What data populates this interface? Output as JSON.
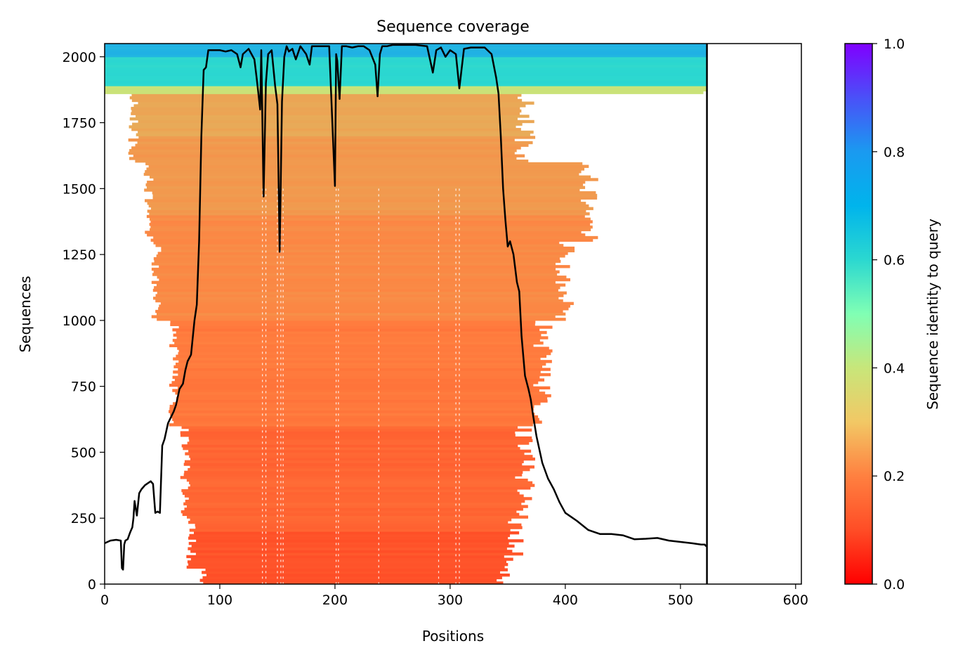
{
  "chart_data": {
    "type": "heatmap",
    "title": "Sequence coverage",
    "xlabel": "Positions",
    "ylabel": "Sequences",
    "xlim": [
      0,
      605
    ],
    "ylim": [
      0,
      2050
    ],
    "xticks": [
      0,
      100,
      200,
      300,
      400,
      500,
      600
    ],
    "yticks": [
      0,
      250,
      500,
      750,
      1000,
      1250,
      1500,
      1750,
      2000
    ],
    "query_length": 523,
    "colorbar": {
      "label": "Sequence identity to query",
      "range": [
        0.0,
        1.0
      ],
      "ticks": [
        "0.0",
        "0.2",
        "0.4",
        "0.6",
        "0.8",
        "1.0"
      ],
      "colormap": "rainbow_r",
      "colors": [
        "#ff0000",
        "#ff8040",
        "#c8e67a",
        "#2bd8d0",
        "#1a9af0",
        "#8000ff"
      ]
    },
    "identity_bands": [
      {
        "from": 0,
        "to": 200,
        "identity": 0.13
      },
      {
        "from": 200,
        "to": 600,
        "identity": 0.16
      },
      {
        "from": 600,
        "to": 1000,
        "identity": 0.19
      },
      {
        "from": 1000,
        "to": 1400,
        "identity": 0.22
      },
      {
        "from": 1400,
        "to": 1700,
        "identity": 0.25
      },
      {
        "from": 1700,
        "to": 1860,
        "identity": 0.28
      },
      {
        "from": 1860,
        "to": 1890,
        "identity": 0.4
      },
      {
        "from": 1890,
        "to": 2000,
        "identity": 0.6
      },
      {
        "from": 2000,
        "to": 2050,
        "identity": 0.72
      }
    ],
    "coverage_extent": [
      {
        "from": 0,
        "to": 60,
        "x_start": 85,
        "x_end": 345
      },
      {
        "from": 60,
        "to": 250,
        "x_start": 75,
        "x_end": 355
      },
      {
        "from": 250,
        "to": 600,
        "x_start": 70,
        "x_end": 365
      },
      {
        "from": 600,
        "to": 1000,
        "x_start": 60,
        "x_end": 380
      },
      {
        "from": 1000,
        "to": 1300,
        "x_start": 45,
        "x_end": 400
      },
      {
        "from": 1300,
        "to": 1600,
        "x_start": 38,
        "x_end": 420
      },
      {
        "from": 1600,
        "to": 1860,
        "x_start": 25,
        "x_end": 365
      },
      {
        "from": 1860,
        "to": 2050,
        "x_start": 0,
        "x_end": 523
      }
    ],
    "coverage_line": {
      "x": [
        0,
        5,
        10,
        14,
        15,
        16,
        17,
        18,
        20,
        22,
        24,
        25,
        26,
        28,
        30,
        32,
        35,
        40,
        42,
        44,
        46,
        48,
        50,
        52,
        55,
        60,
        62,
        65,
        68,
        70,
        72,
        75,
        78,
        80,
        82,
        84,
        86,
        88,
        90,
        95,
        100,
        105,
        110,
        115,
        118,
        120,
        125,
        130,
        132,
        135,
        136,
        138,
        140,
        142,
        145,
        148,
        150,
        152,
        154,
        156,
        158,
        160,
        163,
        166,
        170,
        175,
        178,
        180,
        185,
        190,
        195,
        200,
        201,
        202,
        204,
        206,
        210,
        215,
        220,
        225,
        230,
        235,
        237,
        239,
        241,
        245,
        250,
        260,
        270,
        280,
        285,
        288,
        292,
        296,
        300,
        305,
        308,
        312,
        318,
        322,
        330,
        336,
        340,
        342,
        344,
        346,
        348,
        350,
        352,
        355,
        358,
        360,
        362,
        365,
        368,
        370,
        372,
        375,
        380,
        385,
        390,
        395,
        400,
        405,
        410,
        420,
        430,
        440,
        450,
        460,
        470,
        480,
        490,
        500,
        510,
        518,
        521,
        522,
        523
      ],
      "y": [
        155,
        165,
        168,
        165,
        60,
        55,
        150,
        165,
        170,
        195,
        215,
        250,
        315,
        260,
        345,
        360,
        375,
        390,
        380,
        270,
        275,
        270,
        525,
        550,
        610,
        655,
        680,
        740,
        760,
        810,
        845,
        870,
        1000,
        1060,
        1300,
        1700,
        1950,
        1960,
        2025,
        2025,
        2025,
        2020,
        2025,
        2010,
        1960,
        2010,
        2030,
        1990,
        1920,
        1800,
        2025,
        1470,
        1900,
        2010,
        2025,
        1890,
        1820,
        1260,
        1830,
        2000,
        2040,
        2020,
        2030,
        1990,
        2040,
        2010,
        1970,
        2040,
        2040,
        2040,
        2040,
        1510,
        2010,
        1985,
        1840,
        2040,
        2040,
        2035,
        2040,
        2040,
        2025,
        1970,
        1850,
        2010,
        2040,
        2040,
        2045,
        2045,
        2045,
        2040,
        1940,
        2025,
        2035,
        2000,
        2025,
        2010,
        1880,
        2030,
        2035,
        2035,
        2035,
        2010,
        1920,
        1860,
        1700,
        1500,
        1380,
        1280,
        1300,
        1250,
        1145,
        1110,
        940,
        790,
        740,
        700,
        640,
        560,
        460,
        400,
        360,
        310,
        270,
        255,
        240,
        205,
        190,
        190,
        185,
        170,
        172,
        175,
        165,
        160,
        155,
        150,
        150,
        145,
        143,
        135,
        20
      ]
    }
  }
}
